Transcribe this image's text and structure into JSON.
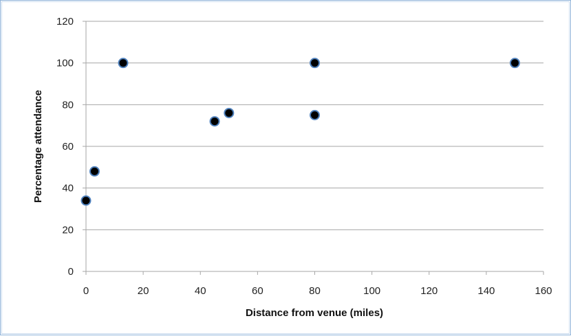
{
  "chart_data": {
    "type": "scatter",
    "title": "",
    "xlabel": "Distance from venue (miles)",
    "ylabel": "Percentage attendance",
    "xlim": [
      0,
      160
    ],
    "ylim": [
      0,
      120
    ],
    "x_ticks": [
      0,
      20,
      40,
      60,
      80,
      100,
      120,
      140,
      160
    ],
    "y_ticks": [
      0,
      20,
      40,
      60,
      80,
      100,
      120
    ],
    "grid": "horizontal",
    "legend": "none",
    "marker_fill": "#000000",
    "marker_edge": "#4f81bd",
    "gridline_color": "#a6a6a6",
    "points": [
      {
        "x": 0,
        "y": 34
      },
      {
        "x": 3,
        "y": 48
      },
      {
        "x": 13,
        "y": 100
      },
      {
        "x": 45,
        "y": 72
      },
      {
        "x": 50,
        "y": 76
      },
      {
        "x": 80,
        "y": 100
      },
      {
        "x": 80,
        "y": 75
      },
      {
        "x": 150,
        "y": 100
      }
    ]
  }
}
